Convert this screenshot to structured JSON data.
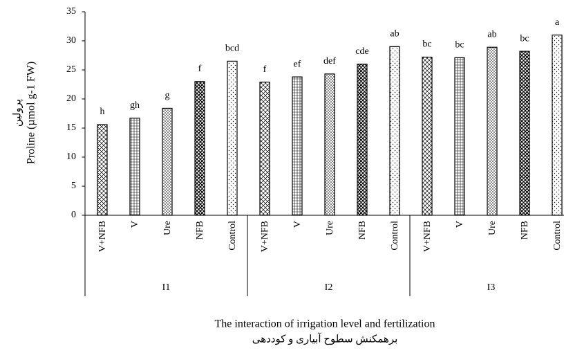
{
  "chart_data": {
    "type": "bar",
    "y_label_lines": [
      "پرولین",
      "Proline (µmol g-1 FW)"
    ],
    "x_label_lines": [
      "The interaction of irrigation level and fertilization",
      "برهمکنش سطوح آبیاری و کوددهی"
    ],
    "groups": [
      "I1",
      "I2",
      "I3"
    ],
    "categories": [
      "V+NFB",
      "V",
      "Ure",
      "NFB",
      "Control",
      "V+NFB",
      "V",
      "Ure",
      "NFB",
      "Control",
      "V+NFB",
      "V",
      "Ure",
      "NFB",
      "Control"
    ],
    "values": [
      15.6,
      16.7,
      18.4,
      23.0,
      26.5,
      22.9,
      23.8,
      24.3,
      26.0,
      29.0,
      27.2,
      27.1,
      28.9,
      28.2,
      31.0
    ],
    "annotations": [
      "h",
      "gh",
      "g",
      "f",
      "bcd",
      "f",
      "ef",
      "def",
      "cde",
      "ab",
      "bc",
      "bc",
      "ab",
      "bc",
      "a"
    ],
    "color": "#000000",
    "ylim": [
      0,
      35
    ],
    "yticks": [
      0,
      5,
      10,
      15,
      20,
      25,
      30,
      35
    ],
    "grid": false
  }
}
